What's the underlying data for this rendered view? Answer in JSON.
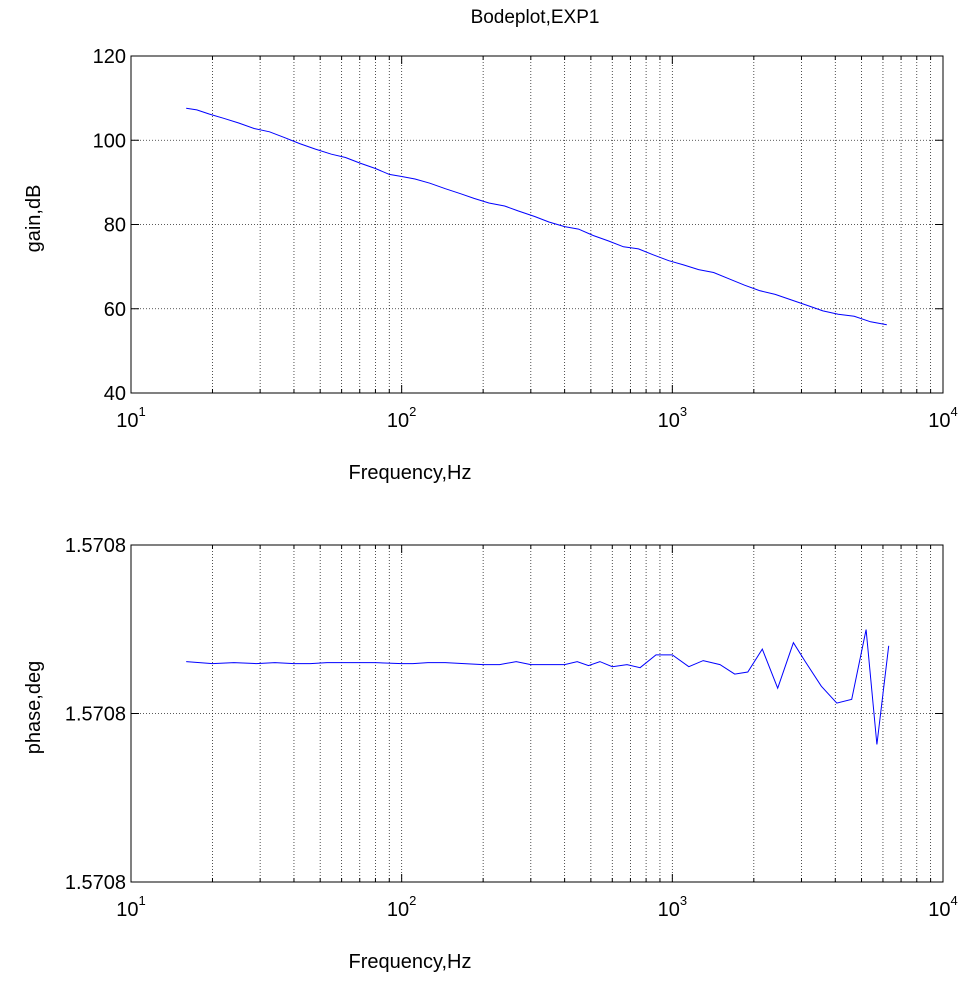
{
  "figure": {
    "title": "Bodeplot,EXP1"
  },
  "chart_data": [
    {
      "type": "line",
      "title": "Bodeplot,EXP1",
      "xlabel": "Frequency,Hz",
      "ylabel": "gain,dB",
      "x_scale": "log",
      "xlim": [
        10,
        10000
      ],
      "ylim": [
        40,
        120
      ],
      "grid": true,
      "x_ticks": [
        {
          "mantissa": "10",
          "exponent": "1"
        },
        {
          "mantissa": "10",
          "exponent": "2"
        },
        {
          "mantissa": "10",
          "exponent": "3"
        },
        {
          "mantissa": "10",
          "exponent": "4"
        }
      ],
      "y_ticks": [
        "40",
        "60",
        "80",
        "100",
        "120"
      ],
      "series": [
        {
          "color": "#0000ff",
          "x": [
            16,
            17.5,
            19.5,
            22,
            25,
            28.5,
            32.5,
            37,
            42,
            48,
            55,
            62,
            70,
            80,
            90,
            100,
            112,
            127,
            145,
            165,
            185,
            210,
            240,
            270,
            310,
            350,
            400,
            450,
            510,
            580,
            660,
            750,
            850,
            970,
            1100,
            1250,
            1420,
            1620,
            1850,
            2100,
            2400,
            2750,
            3150,
            3600,
            4100,
            4700,
            5400,
            6200
          ],
          "y": [
            107.6,
            107.2,
            106.2,
            105.2,
            104.1,
            102.8,
            102.0,
            100.6,
            99.2,
            97.9,
            96.7,
            95.9,
            94.6,
            93.3,
            91.9,
            91.4,
            90.8,
            89.8,
            88.5,
            87.3,
            86.2,
            85.1,
            84.4,
            83.2,
            81.9,
            80.6,
            79.5,
            78.9,
            77.4,
            76.1,
            74.7,
            74.2,
            72.8,
            71.4,
            70.4,
            69.3,
            68.6,
            67.1,
            65.6,
            64.3,
            63.4,
            62.1,
            60.8,
            59.5,
            58.7,
            58.2,
            56.9,
            56.2
          ]
        }
      ]
    },
    {
      "type": "line",
      "xlabel": "Frequency,Hz",
      "ylabel": "phase,deg",
      "x_scale": "log",
      "xlim": [
        10,
        10000
      ],
      "ylim": [
        0,
        1
      ],
      "grid": true,
      "x_ticks": [
        {
          "mantissa": "10",
          "exponent": "1"
        },
        {
          "mantissa": "10",
          "exponent": "2"
        },
        {
          "mantissa": "10",
          "exponent": "3"
        },
        {
          "mantissa": "10",
          "exponent": "4"
        }
      ],
      "y_tick_values": [
        0,
        0.5,
        1
      ],
      "y_tick_labels": [
        "1.5708",
        "1.5708",
        "1.5708"
      ],
      "series": [
        {
          "color": "#0000ff",
          "x": [
            16,
            20,
            24,
            29,
            34,
            40,
            46,
            53,
            60,
            70,
            80,
            100,
            110,
            125,
            145,
            170,
            200,
            230,
            265,
            300,
            350,
            400,
            445,
            490,
            540,
            600,
            680,
            760,
            870,
            1000,
            1150,
            1300,
            1500,
            1700,
            1900,
            2150,
            2450,
            2800,
            3100,
            3550,
            4050,
            4600,
            5200,
            5700,
            6300
          ],
          "y": [
            0.654,
            0.648,
            0.651,
            0.648,
            0.651,
            0.648,
            0.648,
            0.651,
            0.651,
            0.651,
            0.651,
            0.648,
            0.648,
            0.651,
            0.651,
            0.648,
            0.645,
            0.645,
            0.654,
            0.645,
            0.645,
            0.645,
            0.654,
            0.642,
            0.654,
            0.639,
            0.645,
            0.636,
            0.674,
            0.674,
            0.639,
            0.657,
            0.645,
            0.617,
            0.623,
            0.691,
            0.575,
            0.71,
            0.654,
            0.581,
            0.531,
            0.542,
            0.749,
            0.408,
            0.701
          ]
        }
      ]
    }
  ]
}
